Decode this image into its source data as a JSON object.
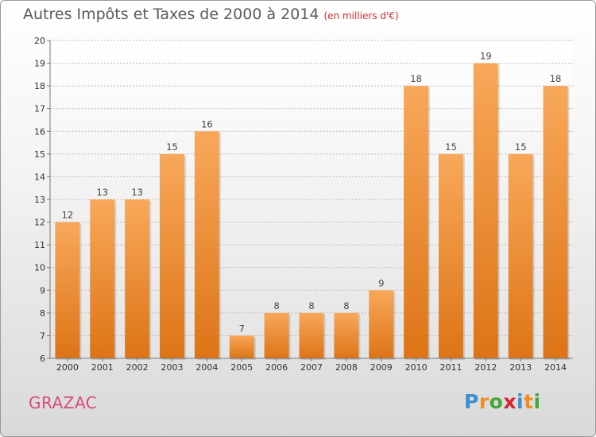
{
  "header": {
    "title": "Autres Impôts et Taxes de 2000 à 2014",
    "unit": "(en milliers d'€)"
  },
  "footer": {
    "commune": "GRAZAC",
    "brand": [
      "P",
      "r",
      "o",
      "x",
      "i",
      "t",
      "i"
    ],
    "brand_colors": [
      "#3c8fd2",
      "#f28c1e",
      "#43a83a",
      "#d7262e",
      "#3c8fd2",
      "#f28c1e",
      "#43a83a"
    ]
  },
  "colors": {
    "bar_top": "#f8a85a",
    "bar_bottom": "#dd7416",
    "commune": "#d64a7e",
    "title": "#5b5b5b",
    "unit": "#d0302c"
  },
  "chart_data": {
    "type": "bar",
    "title": "Autres Impôts et Taxes de 2000 à 2014",
    "subtitle": "(en milliers d'€)",
    "xlabel": "",
    "ylabel": "",
    "categories": [
      "2000",
      "2001",
      "2002",
      "2003",
      "2004",
      "2005",
      "2006",
      "2007",
      "2008",
      "2009",
      "2010",
      "2011",
      "2012",
      "2013",
      "2014"
    ],
    "values": [
      12,
      13,
      13,
      15,
      16,
      7,
      8,
      8,
      8,
      9,
      18,
      15,
      19,
      15,
      18
    ],
    "ylim": [
      6,
      20
    ],
    "yticks": [
      6,
      7,
      8,
      9,
      10,
      11,
      12,
      13,
      14,
      15,
      16,
      17,
      18,
      19,
      20
    ],
    "grid": true,
    "legend": "none"
  }
}
